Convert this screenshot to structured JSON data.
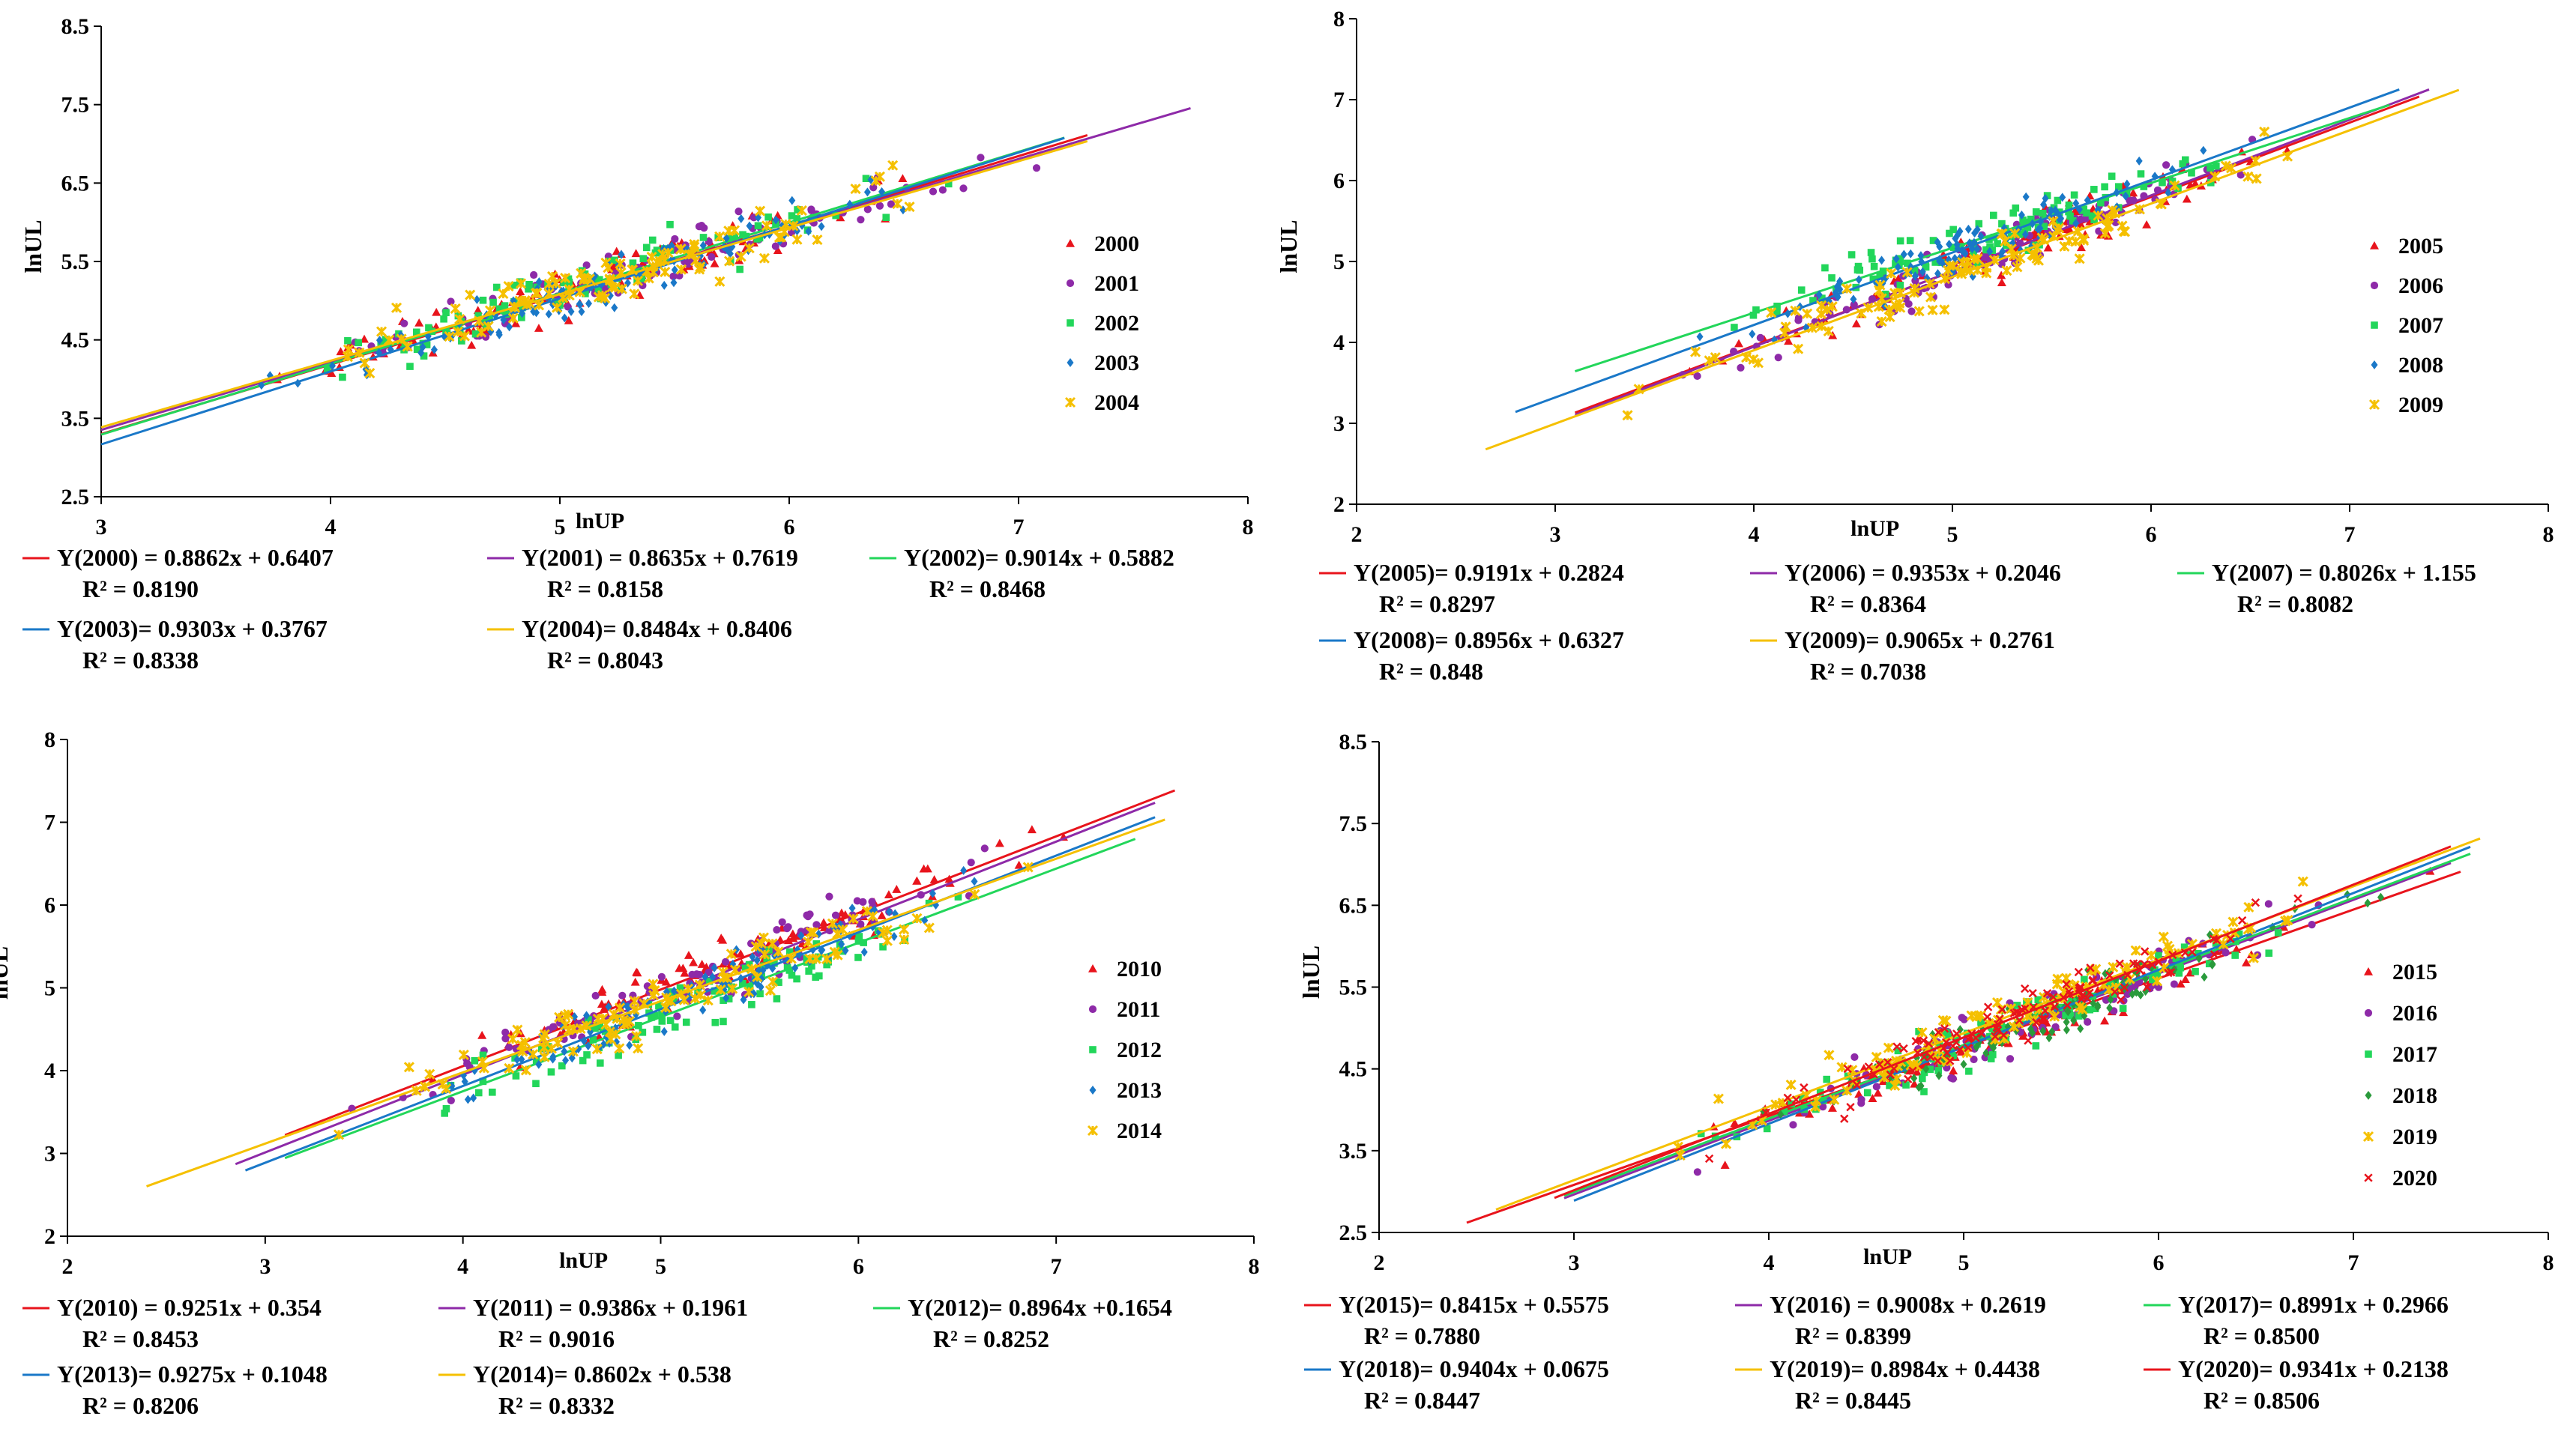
{
  "chart_data": [
    {
      "type": "scatter",
      "title": "",
      "xlabel": "lnUP",
      "ylabel": "lnUL",
      "xlim": [
        3,
        8
      ],
      "ylim": [
        2.5,
        8.5
      ],
      "xticks": [
        "3",
        "4",
        "5",
        "6",
        "7",
        "8"
      ],
      "yticks": [
        "2.5",
        "3.5",
        "4.5",
        "5.5",
        "6.5",
        "7.5",
        "8.5"
      ],
      "series": [
        {
          "name": "2000",
          "marker": "triangle",
          "color": "#e8141c",
          "slope": 0.8862,
          "intercept": 0.6407,
          "line_x": [
            3,
            7.3
          ],
          "x_range": [
            3.05,
            7.1
          ],
          "equation": "Y(2000) = 0.8862x + 0.6407",
          "r2": "R² = 0.8190"
        },
        {
          "name": "2001",
          "marker": "circle",
          "color": "#8e2aa8",
          "slope": 0.8635,
          "intercept": 0.7619,
          "line_x": [
            3,
            7.75
          ],
          "x_range": [
            3.05,
            7.75
          ],
          "equation": "Y(2001) = 0.8635x + 0.7619",
          "r2": "R² = 0.8158"
        },
        {
          "name": "2002",
          "marker": "square",
          "color": "#22d65a",
          "slope": 0.9014,
          "intercept": 0.5882,
          "line_x": [
            3,
            7.2
          ],
          "x_range": [
            3.05,
            7.2
          ],
          "equation": "Y(2002)= 0.9014x + 0.5882",
          "r2": "R² = 0.8468"
        },
        {
          "name": "2003",
          "marker": "diamond",
          "color": "#1a78c8",
          "slope": 0.9303,
          "intercept": 0.3767,
          "line_x": [
            3,
            7.2
          ],
          "x_range": [
            3.05,
            7.1
          ],
          "equation": "Y(2003)= 0.9303x + 0.3767",
          "r2": "R² = 0.8338"
        },
        {
          "name": "2004",
          "marker": "star",
          "color": "#f5c000",
          "slope": 0.8484,
          "intercept": 0.8406,
          "line_x": [
            3,
            7.3
          ],
          "x_range": [
            3.05,
            7.3
          ],
          "equation": "Y(2004)= 0.8484x + 0.8406",
          "r2": "R² = 0.8043"
        }
      ]
    },
    {
      "type": "scatter",
      "title": "",
      "xlabel": "lnUP",
      "ylabel": "lnUL",
      "xlim": [
        2,
        8
      ],
      "ylim": [
        2,
        8
      ],
      "xticks": [
        "2",
        "3",
        "4",
        "5",
        "6",
        "7",
        "8"
      ],
      "yticks": [
        "2",
        "3",
        "4",
        "5",
        "6",
        "7",
        "8"
      ],
      "series": [
        {
          "name": "2005",
          "marker": "triangle",
          "color": "#e8141c",
          "slope": 0.9191,
          "intercept": 0.2824,
          "line_x": [
            3.1,
            7.35
          ],
          "x_range": [
            3.1,
            7.35
          ],
          "equation": "Y(2005)= 0.9191x + 0.2824",
          "r2": "R² = 0.8297"
        },
        {
          "name": "2006",
          "marker": "circle",
          "color": "#8e2aa8",
          "slope": 0.9353,
          "intercept": 0.2046,
          "line_x": [
            3.1,
            7.4
          ],
          "x_range": [
            3.1,
            7.4
          ],
          "equation": "Y(2006) = 0.9353x + 0.2046",
          "r2": "R² = 0.8364"
        },
        {
          "name": "2007",
          "marker": "square",
          "color": "#22d65a",
          "slope": 0.8026,
          "intercept": 1.155,
          "line_x": [
            3.1,
            7.2
          ],
          "x_range": [
            3.1,
            7.2
          ],
          "equation": "Y(2007) = 0.8026x + 1.155",
          "r2": "R² = 0.8082"
        },
        {
          "name": "2008",
          "marker": "diamond",
          "color": "#1a78c8",
          "slope": 0.8956,
          "intercept": 0.6327,
          "line_x": [
            2.8,
            7.25
          ],
          "x_range": [
            2.8,
            7.25
          ],
          "equation": "Y(2008)= 0.8956x + 0.6327",
          "r2": "R² = 0.848"
        },
        {
          "name": "2009",
          "marker": "star",
          "color": "#f5c000",
          "slope": 0.9065,
          "intercept": 0.2761,
          "line_x": [
            2.65,
            7.55
          ],
          "x_range": [
            2.65,
            7.55
          ],
          "equation": "Y(2009)= 0.9065x + 0.2761",
          "r2": "R² = 0.7038"
        }
      ]
    },
    {
      "type": "scatter",
      "title": "",
      "xlabel": "lnUP",
      "ylabel": "lnUL",
      "xlim": [
        2,
        8
      ],
      "ylim": [
        2,
        8
      ],
      "xticks": [
        "2",
        "3",
        "4",
        "5",
        "6",
        "7",
        "8"
      ],
      "yticks": [
        "2",
        "3",
        "4",
        "5",
        "6",
        "7",
        "8"
      ],
      "series": [
        {
          "name": "2010",
          "marker": "triangle",
          "color": "#e8141c",
          "slope": 0.9251,
          "intercept": 0.354,
          "line_x": [
            3.1,
            7.6
          ],
          "x_range": [
            3.1,
            7.6
          ],
          "equation": "Y(2010) = 0.9251x + 0.354",
          "r2": "R² = 0.8453"
        },
        {
          "name": "2011",
          "marker": "circle",
          "color": "#8e2aa8",
          "slope": 0.9386,
          "intercept": 0.1961,
          "line_x": [
            2.85,
            7.5
          ],
          "x_range": [
            2.85,
            7.5
          ],
          "equation": "Y(2011) = 0.9386x + 0.1961",
          "r2": "R² = 0.9016"
        },
        {
          "name": "2012",
          "marker": "square",
          "color": "#22d65a",
          "slope": 0.8964,
          "intercept": 0.1654,
          "line_x": [
            3.1,
            7.4
          ],
          "x_range": [
            3.1,
            7.4
          ],
          "equation": "Y(2012)= 0.8964x +0.1654",
          "r2": "R² = 0.8252"
        },
        {
          "name": "2013",
          "marker": "diamond",
          "color": "#1a78c8",
          "slope": 0.9275,
          "intercept": 0.1048,
          "line_x": [
            2.9,
            7.5
          ],
          "x_range": [
            2.9,
            7.5
          ],
          "equation": "Y(2013)= 0.9275x + 0.1048",
          "r2": "R² = 0.8206"
        },
        {
          "name": "2014",
          "marker": "star",
          "color": "#f5c000",
          "slope": 0.8602,
          "intercept": 0.538,
          "line_x": [
            2.4,
            7.55
          ],
          "x_range": [
            2.4,
            7.55
          ],
          "equation": "Y(2014)= 0.8602x + 0.538",
          "r2": "R² = 0.8332"
        }
      ]
    },
    {
      "type": "scatter",
      "title": "",
      "xlabel": "lnUP",
      "ylabel": "lnUL",
      "xlim": [
        2,
        8
      ],
      "ylim": [
        2.5,
        8.5
      ],
      "xticks": [
        "2",
        "3",
        "4",
        "5",
        "6",
        "7",
        "8"
      ],
      "yticks": [
        "2.5",
        "3.5",
        "4.5",
        "5.5",
        "6.5",
        "7.5",
        "8.5"
      ],
      "series": [
        {
          "name": "2015",
          "marker": "triangle",
          "color": "#e8141c",
          "slope": 0.8415,
          "intercept": 0.5575,
          "line_x": [
            2.45,
            7.55
          ],
          "x_range": [
            2.45,
            7.55
          ],
          "equation": "Y(2015)= 0.8415x + 0.5575",
          "r2": "R² = 0.7880"
        },
        {
          "name": "2016",
          "marker": "circle",
          "color": "#8e2aa8",
          "slope": 0.9008,
          "intercept": 0.2619,
          "line_x": [
            2.95,
            7.5
          ],
          "x_range": [
            2.95,
            7.5
          ],
          "equation": "Y(2016) = 0.9008x + 0.2619",
          "r2": "R² = 0.8399"
        },
        {
          "name": "2017",
          "marker": "square",
          "color": "#22d65a",
          "slope": 0.8991,
          "intercept": 0.2966,
          "line_x": [
            2.95,
            7.6
          ],
          "x_range": [
            2.95,
            7.6
          ],
          "equation": "Y(2017)= 0.8991x + 0.2966",
          "r2": "R² = 0.8500"
        },
        {
          "name": "2018",
          "marker": "diamond-dark",
          "color": "#2a9a3c",
          "slope": 0.9404,
          "intercept": 0.0675,
          "line_x": [
            3.0,
            7.6
          ],
          "x_range": [
            3.0,
            7.6
          ],
          "line_color": "#1a78c8",
          "equation": "Y(2018)= 0.9404x + 0.0675",
          "r2": "R² = 0.8447"
        },
        {
          "name": "2019",
          "marker": "star",
          "color": "#f5c000",
          "slope": 0.8984,
          "intercept": 0.4438,
          "line_x": [
            2.6,
            7.65
          ],
          "x_range": [
            2.6,
            7.65
          ],
          "equation": "Y(2019)= 0.8984x + 0.4438",
          "r2": "R² = 0.8445"
        },
        {
          "name": "2020",
          "marker": "cross",
          "color": "#e8141c",
          "slope": 0.9341,
          "intercept": 0.2138,
          "line_x": [
            2.9,
            7.5
          ],
          "x_range": [
            2.9,
            7.5
          ],
          "equation": "Y(2020)= 0.9341x + 0.2138",
          "r2": "R² = 0.8506"
        }
      ]
    }
  ]
}
